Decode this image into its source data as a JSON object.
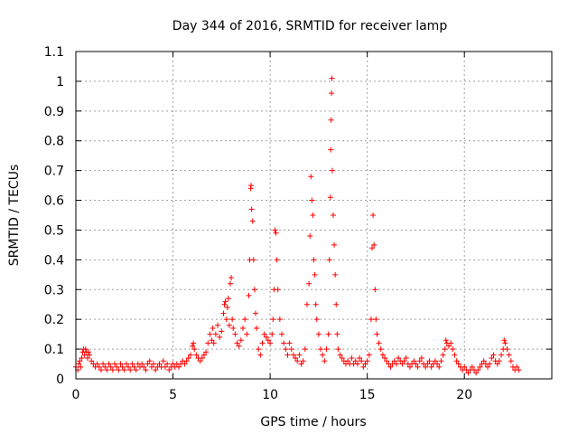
{
  "chart_data": {
    "type": "scatter",
    "title": "Day 344 of 2016, SRMTID for receiver lamp",
    "xlabel": "GPS time / hours",
    "ylabel": "SRMTID / TECUs",
    "xlim": [
      0,
      24.5
    ],
    "ylim": [
      0,
      1.1
    ],
    "xticks": [
      0,
      5,
      10,
      15,
      20
    ],
    "xtick_labels": [
      "0",
      "5",
      "10",
      "15",
      "20"
    ],
    "yticks": [
      0,
      0.1,
      0.2,
      0.3,
      0.4,
      0.5,
      0.6,
      0.7,
      0.8,
      0.9,
      1,
      1.1
    ],
    "ytick_labels": [
      "0",
      "0.1",
      "0.2",
      "0.3",
      "0.4",
      "0.5",
      "0.6",
      "0.7",
      "0.8",
      "0.9",
      "1",
      "1.1"
    ],
    "grid": true,
    "marker": "plus",
    "color": "#ff0000",
    "series": [
      {
        "name": "SRMTID",
        "points": [
          [
            0.0,
            0.04
          ],
          [
            0.1,
            0.03
          ],
          [
            0.15,
            0.05
          ],
          [
            0.2,
            0.06
          ],
          [
            0.25,
            0.04
          ],
          [
            0.3,
            0.07
          ],
          [
            0.35,
            0.09
          ],
          [
            0.4,
            0.1
          ],
          [
            0.45,
            0.08
          ],
          [
            0.5,
            0.1
          ],
          [
            0.55,
            0.09
          ],
          [
            0.6,
            0.07
          ],
          [
            0.65,
            0.09
          ],
          [
            0.7,
            0.08
          ],
          [
            0.8,
            0.06
          ],
          [
            0.9,
            0.05
          ],
          [
            1.0,
            0.04
          ],
          [
            1.1,
            0.05
          ],
          [
            1.2,
            0.04
          ],
          [
            1.3,
            0.03
          ],
          [
            1.4,
            0.05
          ],
          [
            1.5,
            0.04
          ],
          [
            1.6,
            0.03
          ],
          [
            1.7,
            0.05
          ],
          [
            1.8,
            0.04
          ],
          [
            1.9,
            0.03
          ],
          [
            2.0,
            0.05
          ],
          [
            2.1,
            0.04
          ],
          [
            2.2,
            0.03
          ],
          [
            2.3,
            0.05
          ],
          [
            2.4,
            0.04
          ],
          [
            2.5,
            0.03
          ],
          [
            2.6,
            0.05
          ],
          [
            2.7,
            0.04
          ],
          [
            2.8,
            0.03
          ],
          [
            2.9,
            0.05
          ],
          [
            3.0,
            0.04
          ],
          [
            3.1,
            0.03
          ],
          [
            3.2,
            0.05
          ],
          [
            3.3,
            0.04
          ],
          [
            3.4,
            0.05
          ],
          [
            3.5,
            0.04
          ],
          [
            3.6,
            0.03
          ],
          [
            3.7,
            0.05
          ],
          [
            3.8,
            0.06
          ],
          [
            3.9,
            0.04
          ],
          [
            4.0,
            0.05
          ],
          [
            4.1,
            0.03
          ],
          [
            4.2,
            0.04
          ],
          [
            4.3,
            0.05
          ],
          [
            4.4,
            0.04
          ],
          [
            4.5,
            0.06
          ],
          [
            4.6,
            0.04
          ],
          [
            4.7,
            0.05
          ],
          [
            4.8,
            0.03
          ],
          [
            4.9,
            0.04
          ],
          [
            5.0,
            0.05
          ],
          [
            5.1,
            0.04
          ],
          [
            5.2,
            0.05
          ],
          [
            5.3,
            0.04
          ],
          [
            5.4,
            0.05
          ],
          [
            5.5,
            0.06
          ],
          [
            5.6,
            0.05
          ],
          [
            5.7,
            0.06
          ],
          [
            5.8,
            0.07
          ],
          [
            5.9,
            0.08
          ],
          [
            6.0,
            0.11
          ],
          [
            6.05,
            0.12
          ],
          [
            6.1,
            0.1
          ],
          [
            6.2,
            0.08
          ],
          [
            6.3,
            0.07
          ],
          [
            6.4,
            0.06
          ],
          [
            6.5,
            0.07
          ],
          [
            6.6,
            0.08
          ],
          [
            6.7,
            0.09
          ],
          [
            6.8,
            0.12
          ],
          [
            6.9,
            0.15
          ],
          [
            7.0,
            0.13
          ],
          [
            7.05,
            0.17
          ],
          [
            7.1,
            0.12
          ],
          [
            7.2,
            0.15
          ],
          [
            7.3,
            0.18
          ],
          [
            7.4,
            0.14
          ],
          [
            7.5,
            0.16
          ],
          [
            7.6,
            0.22
          ],
          [
            7.65,
            0.25
          ],
          [
            7.7,
            0.26
          ],
          [
            7.75,
            0.2
          ],
          [
            7.8,
            0.24
          ],
          [
            7.85,
            0.27
          ],
          [
            7.9,
            0.18
          ],
          [
            7.95,
            0.32
          ],
          [
            8.0,
            0.34
          ],
          [
            8.05,
            0.2
          ],
          [
            8.1,
            0.17
          ],
          [
            8.2,
            0.15
          ],
          [
            8.3,
            0.12
          ],
          [
            8.4,
            0.11
          ],
          [
            8.5,
            0.13
          ],
          [
            8.6,
            0.17
          ],
          [
            8.7,
            0.2
          ],
          [
            8.8,
            0.15
          ],
          [
            8.9,
            0.28
          ],
          [
            8.95,
            0.4
          ],
          [
            9.0,
            0.64
          ],
          [
            9.02,
            0.65
          ],
          [
            9.05,
            0.57
          ],
          [
            9.1,
            0.53
          ],
          [
            9.15,
            0.4
          ],
          [
            9.2,
            0.3
          ],
          [
            9.25,
            0.22
          ],
          [
            9.3,
            0.17
          ],
          [
            9.4,
            0.1
          ],
          [
            9.5,
            0.08
          ],
          [
            9.6,
            0.12
          ],
          [
            9.7,
            0.15
          ],
          [
            9.8,
            0.14
          ],
          [
            9.9,
            0.13
          ],
          [
            10.0,
            0.12
          ],
          [
            10.1,
            0.15
          ],
          [
            10.15,
            0.2
          ],
          [
            10.2,
            0.3
          ],
          [
            10.25,
            0.5
          ],
          [
            10.3,
            0.49
          ],
          [
            10.35,
            0.4
          ],
          [
            10.4,
            0.3
          ],
          [
            10.5,
            0.2
          ],
          [
            10.6,
            0.15
          ],
          [
            10.7,
            0.12
          ],
          [
            10.8,
            0.1
          ],
          [
            10.9,
            0.08
          ],
          [
            11.0,
            0.12
          ],
          [
            11.1,
            0.1
          ],
          [
            11.2,
            0.08
          ],
          [
            11.3,
            0.07
          ],
          [
            11.4,
            0.06
          ],
          [
            11.5,
            0.08
          ],
          [
            11.6,
            0.05
          ],
          [
            11.7,
            0.06
          ],
          [
            11.8,
            0.1
          ],
          [
            11.9,
            0.25
          ],
          [
            12.0,
            0.32
          ],
          [
            12.05,
            0.48
          ],
          [
            12.1,
            0.68
          ],
          [
            12.15,
            0.6
          ],
          [
            12.2,
            0.55
          ],
          [
            12.25,
            0.4
          ],
          [
            12.3,
            0.35
          ],
          [
            12.35,
            0.25
          ],
          [
            12.4,
            0.2
          ],
          [
            12.5,
            0.15
          ],
          [
            12.6,
            0.1
          ],
          [
            12.7,
            0.08
          ],
          [
            12.8,
            0.06
          ],
          [
            12.9,
            0.1
          ],
          [
            13.0,
            0.15
          ],
          [
            13.05,
            0.4
          ],
          [
            13.1,
            0.61
          ],
          [
            13.12,
            0.77
          ],
          [
            13.14,
            0.87
          ],
          [
            13.16,
            0.96
          ],
          [
            13.18,
            1.01
          ],
          [
            13.2,
            0.7
          ],
          [
            13.25,
            0.55
          ],
          [
            13.3,
            0.45
          ],
          [
            13.35,
            0.35
          ],
          [
            13.4,
            0.25
          ],
          [
            13.45,
            0.15
          ],
          [
            13.5,
            0.1
          ],
          [
            13.6,
            0.08
          ],
          [
            13.7,
            0.07
          ],
          [
            13.8,
            0.06
          ],
          [
            13.9,
            0.05
          ],
          [
            14.0,
            0.06
          ],
          [
            14.1,
            0.05
          ],
          [
            14.2,
            0.07
          ],
          [
            14.3,
            0.05
          ],
          [
            14.4,
            0.06
          ],
          [
            14.5,
            0.05
          ],
          [
            14.6,
            0.07
          ],
          [
            14.7,
            0.06
          ],
          [
            14.8,
            0.04
          ],
          [
            14.9,
            0.05
          ],
          [
            15.0,
            0.06
          ],
          [
            15.1,
            0.08
          ],
          [
            15.2,
            0.2
          ],
          [
            15.25,
            0.44
          ],
          [
            15.3,
            0.55
          ],
          [
            15.35,
            0.45
          ],
          [
            15.4,
            0.3
          ],
          [
            15.45,
            0.2
          ],
          [
            15.5,
            0.15
          ],
          [
            15.6,
            0.12
          ],
          [
            15.7,
            0.1
          ],
          [
            15.8,
            0.08
          ],
          [
            15.9,
            0.07
          ],
          [
            16.0,
            0.06
          ],
          [
            16.1,
            0.05
          ],
          [
            16.2,
            0.04
          ],
          [
            16.3,
            0.05
          ],
          [
            16.4,
            0.06
          ],
          [
            16.5,
            0.05
          ],
          [
            16.6,
            0.07
          ],
          [
            16.7,
            0.06
          ],
          [
            16.8,
            0.05
          ],
          [
            16.9,
            0.06
          ],
          [
            17.0,
            0.07
          ],
          [
            17.1,
            0.05
          ],
          [
            17.2,
            0.04
          ],
          [
            17.3,
            0.05
          ],
          [
            17.4,
            0.06
          ],
          [
            17.5,
            0.05
          ],
          [
            17.6,
            0.04
          ],
          [
            17.7,
            0.06
          ],
          [
            17.8,
            0.07
          ],
          [
            17.9,
            0.05
          ],
          [
            18.0,
            0.04
          ],
          [
            18.1,
            0.05
          ],
          [
            18.2,
            0.06
          ],
          [
            18.3,
            0.04
          ],
          [
            18.4,
            0.05
          ],
          [
            18.5,
            0.06
          ],
          [
            18.6,
            0.05
          ],
          [
            18.7,
            0.04
          ],
          [
            18.8,
            0.06
          ],
          [
            18.9,
            0.08
          ],
          [
            19.0,
            0.1
          ],
          [
            19.05,
            0.13
          ],
          [
            19.1,
            0.12
          ],
          [
            19.2,
            0.11
          ],
          [
            19.3,
            0.12
          ],
          [
            19.4,
            0.1
          ],
          [
            19.5,
            0.08
          ],
          [
            19.6,
            0.06
          ],
          [
            19.7,
            0.05
          ],
          [
            19.8,
            0.04
          ],
          [
            19.9,
            0.03
          ],
          [
            20.0,
            0.04
          ],
          [
            20.1,
            0.03
          ],
          [
            20.2,
            0.02
          ],
          [
            20.3,
            0.03
          ],
          [
            20.4,
            0.04
          ],
          [
            20.5,
            0.03
          ],
          [
            20.6,
            0.02
          ],
          [
            20.7,
            0.03
          ],
          [
            20.8,
            0.04
          ],
          [
            20.9,
            0.05
          ],
          [
            21.0,
            0.06
          ],
          [
            21.1,
            0.05
          ],
          [
            21.2,
            0.04
          ],
          [
            21.3,
            0.05
          ],
          [
            21.4,
            0.07
          ],
          [
            21.5,
            0.08
          ],
          [
            21.6,
            0.06
          ],
          [
            21.7,
            0.05
          ],
          [
            21.8,
            0.06
          ],
          [
            21.9,
            0.08
          ],
          [
            22.0,
            0.1
          ],
          [
            22.05,
            0.13
          ],
          [
            22.1,
            0.12
          ],
          [
            22.2,
            0.1
          ],
          [
            22.3,
            0.08
          ],
          [
            22.4,
            0.06
          ],
          [
            22.5,
            0.04
          ],
          [
            22.6,
            0.03
          ],
          [
            22.7,
            0.04
          ],
          [
            22.8,
            0.03
          ]
        ]
      }
    ]
  }
}
